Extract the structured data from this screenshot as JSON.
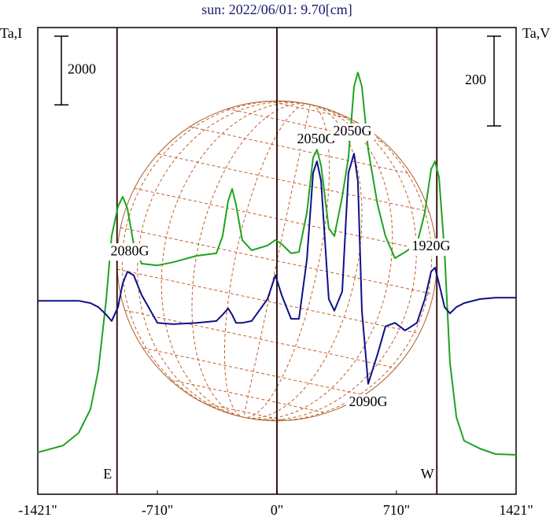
{
  "chart_data": {
    "type": "line",
    "title": "sun: 2022/06/01: 9.70[cm]",
    "ylabel": "Ta,I",
    "y2label": "Ta,V",
    "xlim": [
      -1421,
      1421
    ],
    "xticks": [
      {
        "value": -1421,
        "label": "-1421\""
      },
      {
        "value": -710,
        "label": "-710\""
      },
      {
        "value": 0,
        "label": "0\""
      },
      {
        "value": 710,
        "label": "710\""
      },
      {
        "value": 1421,
        "label": "1421\""
      }
    ],
    "ylim": [
      0,
      13600
    ],
    "y2lim": [
      -600,
      440
    ],
    "x": [
      -1421,
      -1271,
      -1178,
      -1108,
      -1061,
      -1014,
      -982,
      -944,
      -916,
      -888,
      -851,
      -804,
      -710,
      -617,
      -477,
      -360,
      -323,
      -290,
      -266,
      -243,
      -206,
      -150,
      -56,
      -9,
      28,
      84,
      131,
      178,
      215,
      238,
      262,
      308,
      341,
      388,
      425,
      458,
      481,
      505,
      542,
      598,
      645,
      701,
      762,
      832,
      879,
      916,
      939,
      963,
      996,
      1028,
      1066,
      1112,
      1206,
      1299,
      1421
    ],
    "series": [
      {
        "name": "Ta,I",
        "color": "#1fa31f",
        "axis": "y",
        "values": [
          1220,
          1420,
          1790,
          2480,
          3620,
          5690,
          7520,
          8390,
          8670,
          8320,
          7290,
          6720,
          6670,
          6760,
          6950,
          7020,
          7520,
          8550,
          8900,
          8440,
          7410,
          7110,
          7250,
          7410,
          7290,
          7020,
          7060,
          8210,
          9810,
          10040,
          9580,
          7750,
          7520,
          8670,
          9810,
          11880,
          12290,
          11880,
          10040,
          8440,
          7520,
          6880,
          7060,
          7290,
          8210,
          9470,
          9700,
          9240,
          7060,
          3850,
          2250,
          1560,
          1330,
          1170,
          1150
        ]
      },
      {
        "name": "Ta,V",
        "color": "#101088",
        "axis": "y2",
        "values": [
          -169,
          -169,
          -169,
          -174,
          -183,
          -200,
          -214,
          -183,
          -130,
          -104,
          -112,
          -156,
          -218,
          -221,
          -218,
          -214,
          -200,
          -186,
          -200,
          -218,
          -218,
          -214,
          -165,
          -112,
          -156,
          -209,
          -209,
          -77,
          116,
          142,
          98,
          -165,
          -191,
          -148,
          116,
          159,
          98,
          -191,
          -354,
          -288,
          -226,
          -218,
          -235,
          -218,
          -165,
          -104,
          -95,
          -130,
          -183,
          -197,
          -183,
          -174,
          -165,
          -162,
          -162
        ]
      }
    ],
    "markers": [
      {
        "x": -950,
        "label": "E"
      },
      {
        "x": 0
      },
      {
        "x": 950,
        "label": "W"
      }
    ],
    "scale_bars": [
      {
        "axis": "y",
        "value": 2000
      },
      {
        "axis": "y2",
        "value": 200
      }
    ],
    "annotations": [
      {
        "text": "2080G",
        "x": -874,
        "y": 7060
      },
      {
        "text": "2050G",
        "x": 234,
        "y": 10320
      },
      {
        "text": "2050G",
        "x": 449,
        "y": 10550
      },
      {
        "text": "1920G",
        "x": 916,
        "y": 7200
      },
      {
        "text": "2090G",
        "x": 542,
        "y": 2660
      }
    ]
  }
}
